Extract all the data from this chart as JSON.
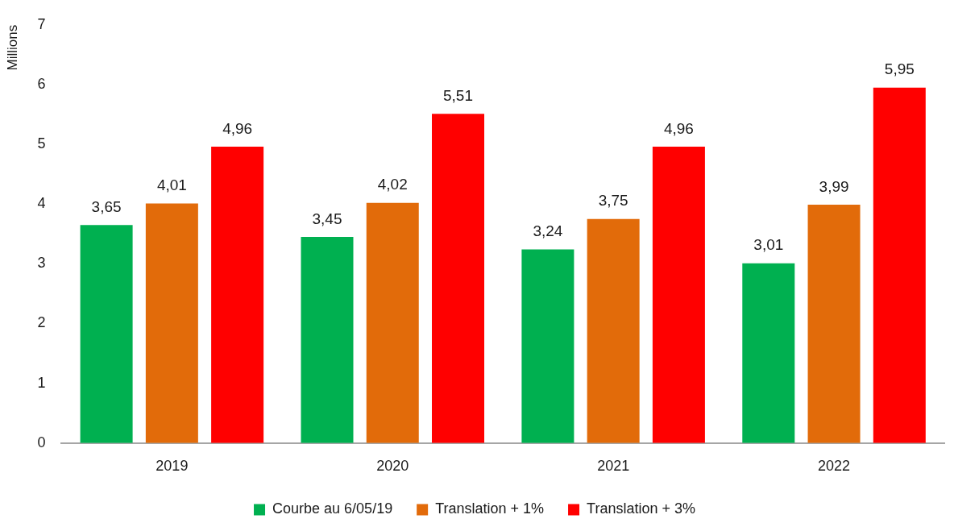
{
  "chart_data": {
    "type": "bar",
    "ylabel": "Millions",
    "categories": [
      "2019",
      "2020",
      "2021",
      "2022"
    ],
    "series": [
      {
        "name": "Courbe au 6/05/19",
        "color": "#00b050",
        "values": [
          3.65,
          3.45,
          3.24,
          3.01
        ],
        "value_labels": [
          "3,65",
          "3,45",
          "3,24",
          "3,01"
        ]
      },
      {
        "name": "Translation + 1%",
        "color": "#e26b0a",
        "values": [
          4.01,
          4.02,
          3.75,
          3.99
        ],
        "value_labels": [
          "4,01",
          "4,02",
          "3,75",
          "3,99"
        ]
      },
      {
        "name": "Translation + 3%",
        "color": "#ff0000",
        "values": [
          4.96,
          5.51,
          4.96,
          5.95
        ],
        "value_labels": [
          "4,96",
          "5,51",
          "4,96",
          "5,95"
        ]
      }
    ],
    "ylim": [
      0,
      7
    ],
    "yticks": [
      0,
      1,
      2,
      3,
      4,
      5,
      6,
      7
    ],
    "legend": "bottom"
  }
}
